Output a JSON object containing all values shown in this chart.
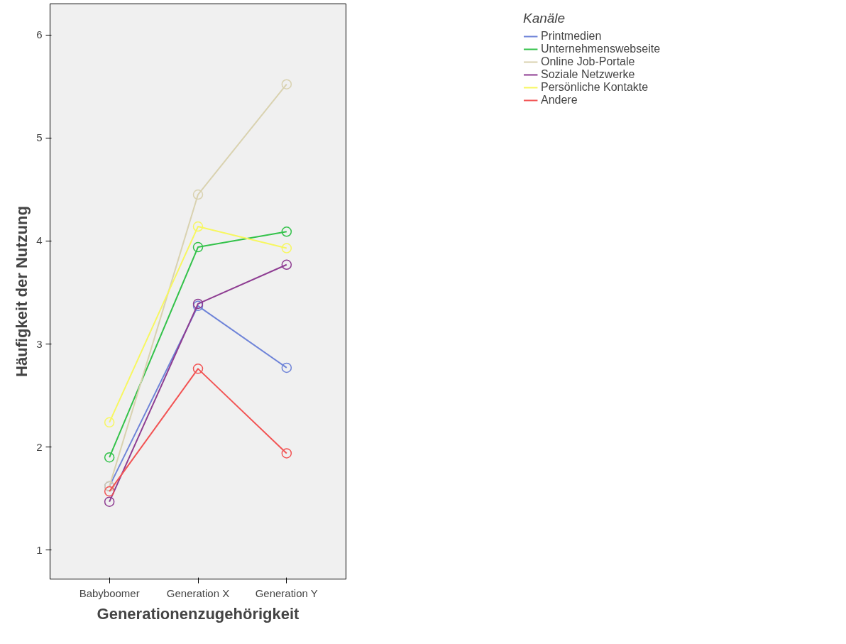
{
  "chart_data": {
    "type": "line",
    "xlabel": "Generationenzugehörigkeit",
    "ylabel": "Häufigkeit der Nutzung",
    "legend_title": "Kanäle",
    "categories": [
      "Babyboomer",
      "Generation X",
      "Generation Y"
    ],
    "series": [
      {
        "name": "Printmedien",
        "color": "#6f84d8",
        "values": [
          1.62,
          3.37,
          2.77
        ]
      },
      {
        "name": "Unternehmenswebseite",
        "color": "#33c24a",
        "values": [
          1.9,
          3.94,
          4.09
        ]
      },
      {
        "name": "Online Job-Portale",
        "color": "#d9d2b0",
        "values": [
          1.62,
          4.45,
          5.52
        ]
      },
      {
        "name": "Soziale Netzwerke",
        "color": "#8e3d92",
        "values": [
          1.47,
          3.39,
          3.77
        ]
      },
      {
        "name": "Persönliche Kontakte",
        "color": "#f7f760",
        "values": [
          2.24,
          4.14,
          3.93
        ]
      },
      {
        "name": "Andere",
        "color": "#f25454",
        "values": [
          1.57,
          2.76,
          1.94
        ]
      }
    ],
    "ylim": [
      0.72,
      6.3
    ],
    "yticks": [
      1,
      2,
      3,
      4,
      5,
      6
    ],
    "grid": false,
    "legend": "top right",
    "marker": "circle",
    "line_style": "solid"
  }
}
